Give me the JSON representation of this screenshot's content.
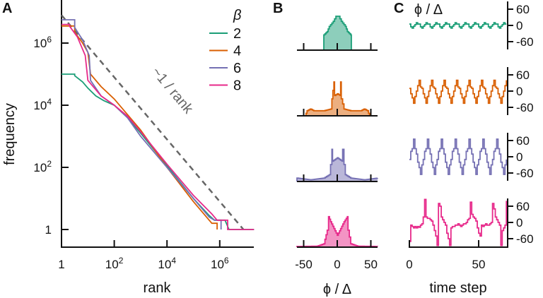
{
  "panels": {
    "a": "A",
    "b": "B",
    "c": "C"
  },
  "colors": {
    "2": "#1b9e77",
    "4": "#d95f02",
    "6": "#7570b3",
    "8": "#e7298a",
    "guide": "#666666",
    "axis": "#111111"
  },
  "chart_data": [
    {
      "type": "line",
      "panel": "A",
      "title": "",
      "xlabel": "rank",
      "ylabel": "frequency",
      "xscale": "log",
      "yscale": "log",
      "xlim_log10": [
        0,
        7.3
      ],
      "ylim_log10": [
        -0.6,
        7.4
      ],
      "xticks_log10": [
        0,
        2,
        4,
        6
      ],
      "xtick_labels": [
        "1",
        "10^2",
        "10^4",
        "10^6"
      ],
      "yticks_log10": [
        0,
        2,
        4,
        6
      ],
      "ytick_labels": [
        "1",
        "10^2",
        "10^4",
        "10^6"
      ],
      "legend": {
        "title": "β",
        "placement": "top-right",
        "entries": [
          "2",
          "4",
          "6",
          "8"
        ]
      },
      "guide": {
        "label": "~1 / rank",
        "points_log10": [
          [
            0,
            6.9
          ],
          [
            6.9,
            0
          ]
        ]
      },
      "series": [
        {
          "name": "2",
          "points_log10": [
            [
              0,
              5.0
            ],
            [
              0.25,
              5.0
            ],
            [
              0.5,
              4.95
            ],
            [
              0.8,
              4.75
            ],
            [
              1,
              4.55
            ],
            [
              1.3,
              4.3
            ],
            [
              1.6,
              4.15
            ],
            [
              2,
              4.0
            ],
            [
              2.5,
              3.6
            ],
            [
              3,
              3.1
            ],
            [
              4,
              2.05
            ],
            [
              5,
              1.0
            ],
            [
              5.6,
              0.45
            ],
            [
              5.8,
              0.3
            ],
            [
              6.2,
              0.3
            ],
            [
              6.35,
              0
            ],
            [
              7.3,
              0
            ]
          ]
        },
        {
          "name": "4",
          "points_log10": [
            [
              0,
              6.55
            ],
            [
              0.25,
              6.55
            ],
            [
              0.5,
              6.35
            ],
            [
              0.8,
              6.0
            ],
            [
              1.0,
              5.7
            ],
            [
              1.1,
              5.0
            ],
            [
              1.5,
              4.6
            ],
            [
              2,
              4.2
            ],
            [
              2.5,
              3.7
            ],
            [
              3,
              3.2
            ],
            [
              4,
              2.0
            ],
            [
              5,
              0.9
            ],
            [
              5.5,
              0.4
            ],
            [
              5.7,
              0.2
            ],
            [
              5.9,
              0.2
            ],
            [
              5.9,
              0
            ]
          ]
        },
        {
          "name": "6",
          "points_log10": [
            [
              0,
              6.75
            ],
            [
              0.25,
              6.75
            ],
            [
              0.5,
              6.5
            ],
            [
              0.8,
              6.1
            ],
            [
              1.05,
              5.6
            ],
            [
              1.1,
              4.8
            ],
            [
              1.5,
              4.3
            ],
            [
              2,
              4.0
            ],
            [
              2.5,
              3.6
            ],
            [
              3,
              3.0
            ],
            [
              4,
              2.0
            ],
            [
              5,
              1.0
            ],
            [
              5.6,
              0.4
            ],
            [
              5.8,
              0.3
            ],
            [
              6.05,
              0.3
            ],
            [
              6.05,
              0
            ]
          ]
        },
        {
          "name": "8",
          "points_log10": [
            [
              0,
              6.6
            ],
            [
              0.3,
              6.55
            ],
            [
              0.6,
              6.2
            ],
            [
              0.9,
              5.6
            ],
            [
              1.0,
              4.8
            ],
            [
              1.5,
              4.3
            ],
            [
              2,
              4.0
            ],
            [
              2.5,
              3.65
            ],
            [
              3,
              3.15
            ],
            [
              4,
              2.1
            ],
            [
              5,
              1.1
            ],
            [
              5.7,
              0.5
            ],
            [
              5.9,
              0.3
            ],
            [
              6.3,
              0.3
            ],
            [
              6.3,
              0
            ],
            [
              7.3,
              0
            ]
          ]
        }
      ]
    },
    {
      "type": "area",
      "panel": "B",
      "xlabel": "ϕ / Δ",
      "xlim": [
        -60,
        60
      ],
      "xticks": [
        -50,
        0,
        50
      ],
      "xtick_labels": [
        "-50",
        "0",
        "50"
      ],
      "series": [
        {
          "name": "2",
          "points": [
            [
              -21,
              0
            ],
            [
              -20,
              0.45
            ],
            [
              -15,
              0.55
            ],
            [
              -12,
              0.7
            ],
            [
              -6,
              0.85
            ],
            [
              -2,
              1.0
            ],
            [
              2,
              1.0
            ],
            [
              6,
              0.85
            ],
            [
              12,
              0.7
            ],
            [
              15,
              0.55
            ],
            [
              20,
              0.45
            ],
            [
              21,
              0
            ]
          ]
        },
        {
          "name": "4",
          "points": [
            [
              -48,
              0
            ],
            [
              -45,
              0.15
            ],
            [
              -40,
              0.2
            ],
            [
              -35,
              0.15
            ],
            [
              -20,
              0.15
            ],
            [
              -10,
              0.2
            ],
            [
              -8,
              0.5
            ],
            [
              -5,
              1.0
            ],
            [
              -4,
              0.6
            ],
            [
              0,
              0.65
            ],
            [
              4,
              0.6
            ],
            [
              5,
              1.0
            ],
            [
              6,
              0.5
            ],
            [
              10,
              0.2
            ],
            [
              20,
              0.15
            ],
            [
              35,
              0.15
            ],
            [
              40,
              0.2
            ],
            [
              45,
              0.15
            ],
            [
              48,
              0
            ]
          ]
        },
        {
          "name": "6",
          "points": [
            [
              -60,
              0.1
            ],
            [
              -40,
              0.05
            ],
            [
              -20,
              0.1
            ],
            [
              -12,
              0.2
            ],
            [
              -10,
              0.5
            ],
            [
              -8,
              0.95
            ],
            [
              -7,
              0.6
            ],
            [
              0,
              0.7
            ],
            [
              7,
              0.6
            ],
            [
              8,
              0.95
            ],
            [
              10,
              0.5
            ],
            [
              12,
              0.2
            ],
            [
              20,
              0.1
            ],
            [
              40,
              0.05
            ],
            [
              60,
              0.1
            ]
          ]
        },
        {
          "name": "8",
          "points": [
            [
              -60,
              0.02
            ],
            [
              -30,
              0.03
            ],
            [
              -20,
              0.1
            ],
            [
              -15,
              0.5
            ],
            [
              -13,
              0.9
            ],
            [
              -10,
              0.75
            ],
            [
              -5,
              0.55
            ],
            [
              0,
              0.35
            ],
            [
              5,
              0.55
            ],
            [
              10,
              0.75
            ],
            [
              15,
              0.9
            ],
            [
              16,
              0.5
            ],
            [
              20,
              0.1
            ],
            [
              30,
              0.03
            ],
            [
              60,
              0.02
            ]
          ]
        }
      ]
    },
    {
      "type": "line",
      "panel": "C",
      "ylabel": "ϕ / Δ",
      "xlabel": "time step",
      "xlim": [
        0,
        71
      ],
      "ylim": [
        -80,
        80
      ],
      "xticks": [
        0,
        50
      ],
      "xtick_labels": [
        "0",
        "50"
      ],
      "yticks": [
        60,
        0,
        -60
      ],
      "ytick_labels": [
        "60",
        "0",
        "-60"
      ],
      "series": [
        {
          "name": "2",
          "repeat_pattern": [
            5,
            -5,
            -10,
            -3,
            3,
            10,
            5
          ],
          "length": 71
        },
        {
          "name": "4",
          "repeat_pattern": [
            10,
            -10,
            -25,
            -45,
            -20,
            0,
            20,
            40,
            15
          ],
          "length": 71
        },
        {
          "name": "6",
          "repeat_pattern": [
            -10,
            20,
            30,
            65,
            30,
            10,
            -20,
            -40,
            -65,
            -30
          ],
          "length": 71
        },
        {
          "name": "8",
          "values": [
            -70,
            -10,
            -15,
            -20,
            -15,
            -20,
            -15,
            -18,
            -10,
            -5,
            20,
            85,
            20,
            15,
            15,
            10,
            5,
            -10,
            -30,
            -50,
            -100,
            70,
            60,
            20,
            10,
            0,
            -10,
            -40,
            -60,
            -100,
            -20,
            -15,
            -15,
            -10,
            -10,
            -5,
            -10,
            -15,
            -10,
            -5,
            -5,
            0,
            10,
            15,
            75,
            30,
            20,
            15,
            5,
            -20,
            -40,
            -50,
            -10,
            -15,
            -10,
            -5,
            -10,
            -10,
            -5,
            0,
            70,
            50,
            20,
            10,
            0,
            -10,
            -100,
            -30,
            -20,
            -10,
            80
          ]
        }
      ]
    }
  ]
}
